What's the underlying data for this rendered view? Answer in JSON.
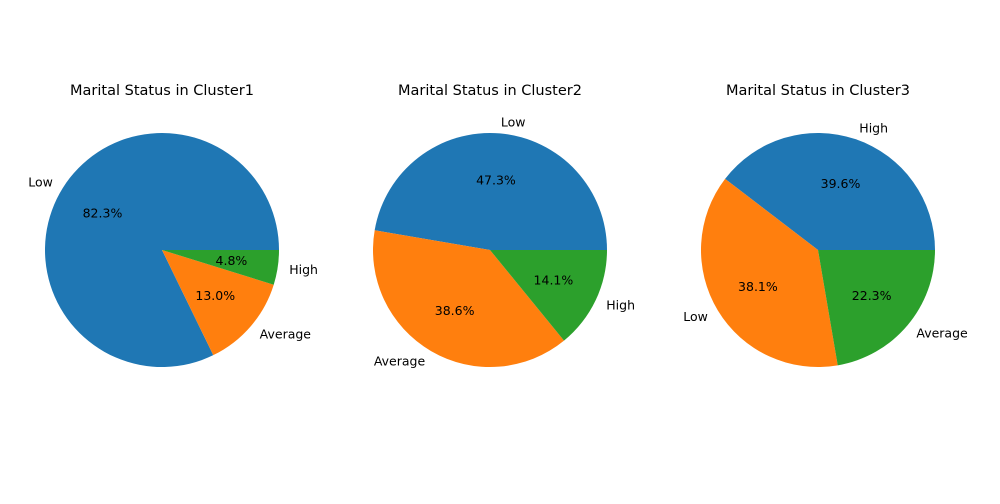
{
  "figure": {
    "background": "#ffffff"
  },
  "chart_data": [
    {
      "type": "pie",
      "title": "Marital Status in Cluster1",
      "slices": [
        {
          "label": "Low",
          "value": 82.3,
          "pct_label": "82.3%",
          "color": "#1f77b4"
        },
        {
          "label": "Average",
          "value": 13.0,
          "pct_label": "13.0%",
          "color": "#ff7f0e"
        },
        {
          "label": "High",
          "value": 4.8,
          "pct_label": "4.8%",
          "color": "#2ca02c"
        }
      ]
    },
    {
      "type": "pie",
      "title": "Marital Status in Cluster2",
      "slices": [
        {
          "label": "Low",
          "value": 47.3,
          "pct_label": "47.3%",
          "color": "#1f77b4"
        },
        {
          "label": "Average",
          "value": 38.6,
          "pct_label": "38.6%",
          "color": "#ff7f0e"
        },
        {
          "label": "High",
          "value": 14.1,
          "pct_label": "14.1%",
          "color": "#2ca02c"
        }
      ]
    },
    {
      "type": "pie",
      "title": "Marital Status in Cluster3",
      "slices": [
        {
          "label": "High",
          "value": 39.6,
          "pct_label": "39.6%",
          "color": "#1f77b4"
        },
        {
          "label": "Low",
          "value": 38.1,
          "pct_label": "38.1%",
          "color": "#ff7f0e"
        },
        {
          "label": "Average",
          "value": 22.3,
          "pct_label": "22.3%",
          "color": "#2ca02c"
        }
      ]
    }
  ]
}
